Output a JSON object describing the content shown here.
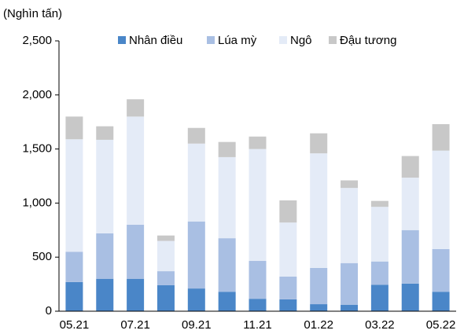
{
  "chart_data": {
    "type": "stacked_bar",
    "y_label": "(Nghìn tấn)",
    "categories": [
      "05.21",
      null,
      "07.21",
      null,
      "09.21",
      null,
      "11.21",
      null,
      "01.22",
      null,
      "03.22",
      null,
      "05.22"
    ],
    "series": [
      {
        "name": "Nhân điều",
        "color": "#4a86c8",
        "values": [
          270,
          300,
          300,
          240,
          210,
          180,
          115,
          110,
          65,
          60,
          245,
          255,
          180
        ]
      },
      {
        "name": "Lúa mỳ",
        "color": "#a9bfe3",
        "values": [
          280,
          420,
          500,
          130,
          620,
          495,
          350,
          210,
          335,
          385,
          215,
          495,
          395
        ]
      },
      {
        "name": "Ngô",
        "color": "#e4ebf7",
        "values": [
          1040,
          865,
          1000,
          280,
          720,
          750,
          1035,
          500,
          1060,
          695,
          505,
          485,
          910
        ]
      },
      {
        "name": "Đậu tương",
        "color": "#c8c8c8",
        "values": [
          210,
          125,
          160,
          50,
          145,
          140,
          115,
          205,
          185,
          70,
          55,
          200,
          245
        ]
      }
    ],
    "ylim": [
      0,
      2500
    ],
    "yticks": [
      0,
      500,
      {
        "value": 1000,
        "label": "1,000"
      },
      {
        "value": 1500,
        "label": "1,500"
      },
      {
        "value": 2000,
        "label": "2,000"
      },
      {
        "value": 2500,
        "label": "2,500"
      }
    ],
    "grid": false,
    "legend": "top"
  }
}
